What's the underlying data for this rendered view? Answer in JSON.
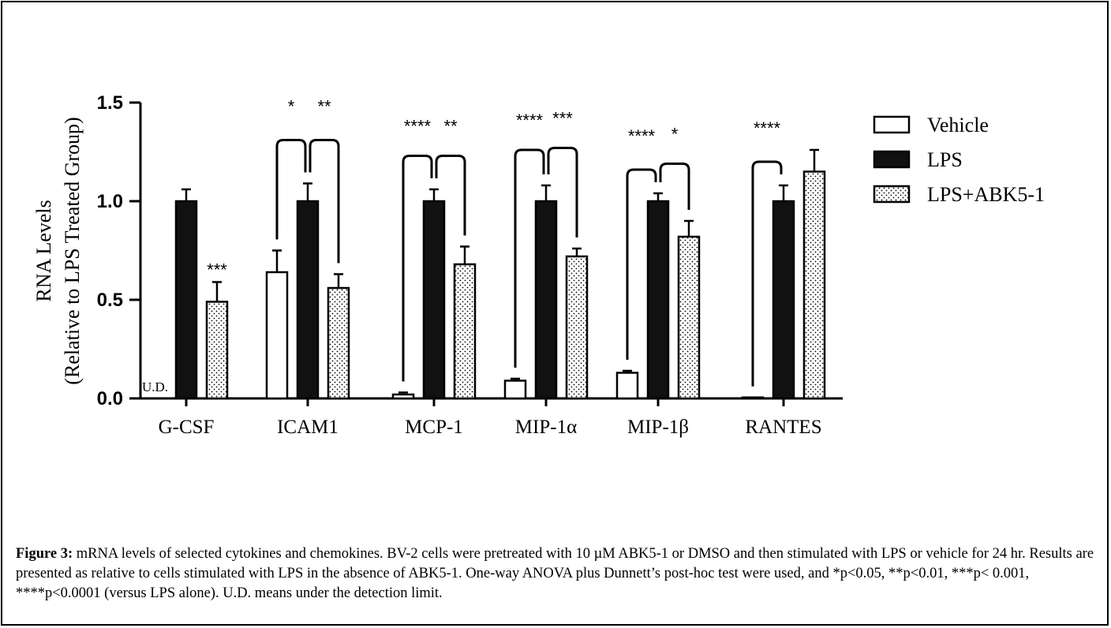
{
  "chart_data": {
    "type": "bar",
    "ylabel_line1": "RNA Levels",
    "ylabel_line2": "(Relative to LPS Treated Group)",
    "ylim": [
      0,
      1.5
    ],
    "yticks": [
      "0.0",
      "0.5",
      "1.0",
      "1.5"
    ],
    "categories": [
      "G-CSF",
      "ICAM1",
      "MCP-1",
      "MIP-1α",
      "MIP-1β",
      "RANTES"
    ],
    "series": [
      {
        "name": "Vehicle",
        "values": [
          0,
          0.64,
          0.02,
          0.09,
          0.13,
          0.005
        ],
        "errors": [
          0,
          0.11,
          0.01,
          0.01,
          0.01,
          0.0
        ]
      },
      {
        "name": "LPS",
        "values": [
          1.0,
          1.0,
          1.0,
          1.0,
          1.0,
          1.0
        ],
        "errors": [
          0.06,
          0.09,
          0.06,
          0.08,
          0.04,
          0.08
        ]
      },
      {
        "name": "LPS+ABK5-1",
        "values": [
          0.49,
          0.56,
          0.68,
          0.72,
          0.82,
          1.15
        ],
        "errors": [
          0.1,
          0.07,
          0.09,
          0.04,
          0.08,
          0.11
        ]
      }
    ],
    "annotations": [
      {
        "category": "G-CSF",
        "text": "***",
        "type": "single",
        "bar": 2
      },
      {
        "category": "ICAM1",
        "text": "*",
        "type": "bracket",
        "pair": [
          0,
          1
        ],
        "y": 1.31,
        "textY": 1.45
      },
      {
        "category": "ICAM1",
        "text": "**",
        "type": "bracket",
        "pair": [
          1,
          2
        ],
        "y": 1.31,
        "textY": 1.45
      },
      {
        "category": "MCP-1",
        "text": "****",
        "type": "bracket",
        "pair": [
          0,
          1
        ],
        "y": 1.23,
        "textY": 1.35
      },
      {
        "category": "MCP-1",
        "text": "**",
        "type": "bracket",
        "pair": [
          1,
          2
        ],
        "y": 1.23,
        "textY": 1.35
      },
      {
        "category": "MIP-1α",
        "text": "****",
        "type": "bracket",
        "pair": [
          0,
          1
        ],
        "y": 1.26,
        "textY": 1.38
      },
      {
        "category": "MIP-1α",
        "text": "***",
        "type": "bracket",
        "pair": [
          1,
          2
        ],
        "y": 1.27,
        "textY": 1.39
      },
      {
        "category": "MIP-1β",
        "text": "****",
        "type": "bracket",
        "pair": [
          0,
          1
        ],
        "y": 1.16,
        "textY": 1.3
      },
      {
        "category": "MIP-1β",
        "text": "*",
        "type": "bracket",
        "pair": [
          1,
          2
        ],
        "y": 1.19,
        "textY": 1.31
      },
      {
        "category": "RANTES",
        "text": "****",
        "type": "bracket",
        "pair": [
          0,
          1
        ],
        "y": 1.2,
        "textY": 1.34
      }
    ],
    "ud_label": "U.D.",
    "legend_position": "right",
    "grid": false
  },
  "caption": {
    "label": "Figure 3:",
    "text": " mRNA levels of selected cytokines and chemokines. BV-2 cells were pretreated with 10 µM ABK5-1 or DMSO and then stimulated with LPS or vehicle for 24 hr. Results are presented as relative to cells stimulated with LPS in the absence of ABK5-1. One-way ANOVA plus Dunnett’s post-hoc test were used, and *p<0.05, **p<0.01, ***p< 0.001, ****p<0.0001 (versus LPS alone). U.D. means under the detection limit."
  }
}
